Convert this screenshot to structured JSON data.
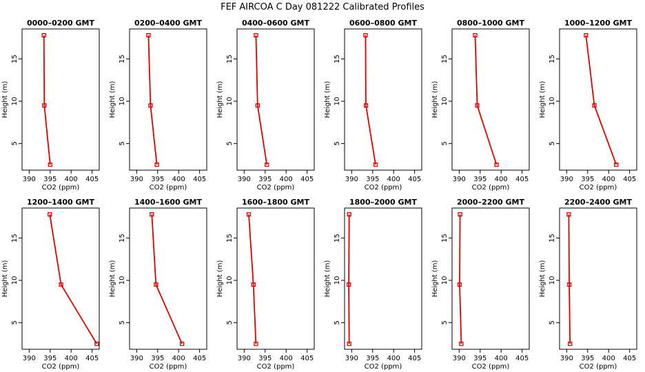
{
  "chart_data": {
    "title": "FEF AIRCOA C  Day 081222  Calibrated Profiles",
    "type": "line",
    "xlabel": "CO2 (ppm)",
    "ylabel": "Height (m)",
    "xlim": [
      388.3,
      406.7
    ],
    "ylim": [
      1.85,
      18.55
    ],
    "xticks": [
      390,
      395,
      400,
      405
    ],
    "yticks": [
      5,
      10,
      15
    ],
    "series_color": "#dd0000",
    "panels": [
      {
        "title": "0000–0200 GMT",
        "heights": [
          17.8,
          9.5,
          2.5
        ],
        "co2": [
          393.5,
          393.6,
          395.0
        ]
      },
      {
        "title": "0200–0400 GMT",
        "heights": [
          17.8,
          9.5,
          2.5
        ],
        "co2": [
          392.8,
          393.3,
          394.8
        ]
      },
      {
        "title": "0400–0600 GMT",
        "heights": [
          17.8,
          9.5,
          2.5
        ],
        "co2": [
          392.8,
          393.2,
          395.4
        ]
      },
      {
        "title": "0600–0800 GMT",
        "heights": [
          17.8,
          9.5,
          2.5
        ],
        "co2": [
          393.3,
          393.4,
          395.7
        ]
      },
      {
        "title": "0800–1000 GMT",
        "heights": [
          17.8,
          9.5,
          2.5
        ],
        "co2": [
          393.8,
          394.3,
          398.9
        ]
      },
      {
        "title": "1000–1200 GMT",
        "heights": [
          17.8,
          9.5,
          2.5
        ],
        "co2": [
          394.6,
          396.6,
          401.8
        ]
      },
      {
        "title": "1200–1400 GMT",
        "heights": [
          17.8,
          9.5,
          2.5
        ],
        "co2": [
          394.9,
          397.6,
          406.1
        ]
      },
      {
        "title": "1400–1600 GMT",
        "heights": [
          17.8,
          9.5,
          2.5
        ],
        "co2": [
          393.6,
          394.6,
          400.8
        ]
      },
      {
        "title": "1600–1800 GMT",
        "heights": [
          17.8,
          9.5,
          2.5
        ],
        "co2": [
          391.1,
          392.2,
          392.8
        ]
      },
      {
        "title": "1800–2000 GMT",
        "heights": [
          17.8,
          9.5,
          2.5
        ],
        "co2": [
          389.4,
          389.3,
          389.4
        ]
      },
      {
        "title": "2000–2200 GMT",
        "heights": [
          17.8,
          9.5,
          2.5
        ],
        "co2": [
          390.2,
          390.1,
          390.5
        ]
      },
      {
        "title": "2200–2400 GMT",
        "heights": [
          17.8,
          9.5,
          2.5
        ],
        "co2": [
          390.5,
          390.6,
          390.8
        ]
      }
    ]
  }
}
